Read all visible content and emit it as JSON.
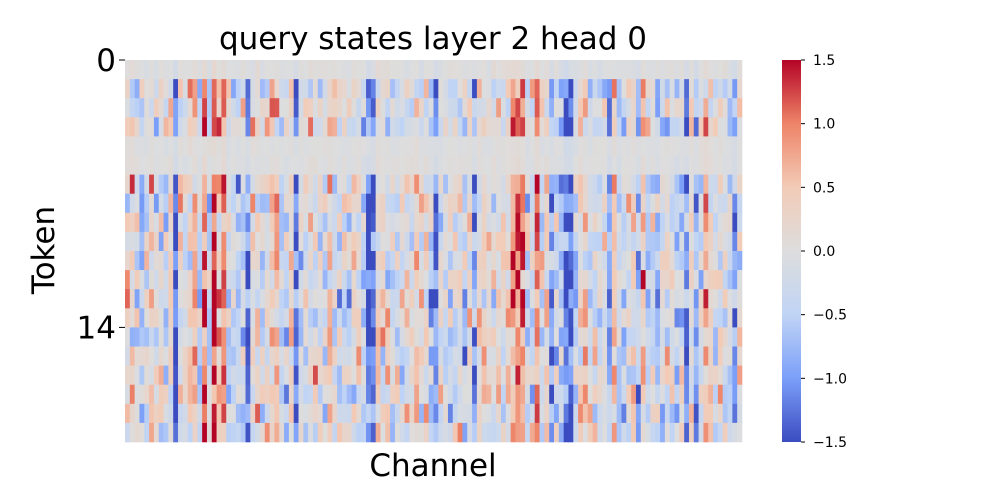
{
  "chart_data": {
    "type": "heatmap",
    "title": "query states layer 2 head 0",
    "xlabel": "Channel",
    "ylabel": "Token",
    "n_rows": 20,
    "n_cols": 128,
    "y_ticks": [
      {
        "label": "0",
        "value": 0
      },
      {
        "label": "14",
        "value": 14
      }
    ],
    "x_ticks": [],
    "colormap": "coolwarm",
    "colormap_stops": [
      "#3b4cc0",
      "#7b9ff9",
      "#c0d4f5",
      "#dddddd",
      "#f2cbb7",
      "#ee8468",
      "#b40426"
    ],
    "vmin": -1.5,
    "vmax": 1.5,
    "colorbar_ticks": [
      "1.5",
      "1.0",
      "0.5",
      "0.0",
      "−0.5",
      "−1.0",
      "−1.5"
    ],
    "colorbar_tick_values": [
      1.5,
      1.0,
      0.5,
      0.0,
      -0.5,
      -1.0,
      -1.5
    ],
    "grid": false
  }
}
